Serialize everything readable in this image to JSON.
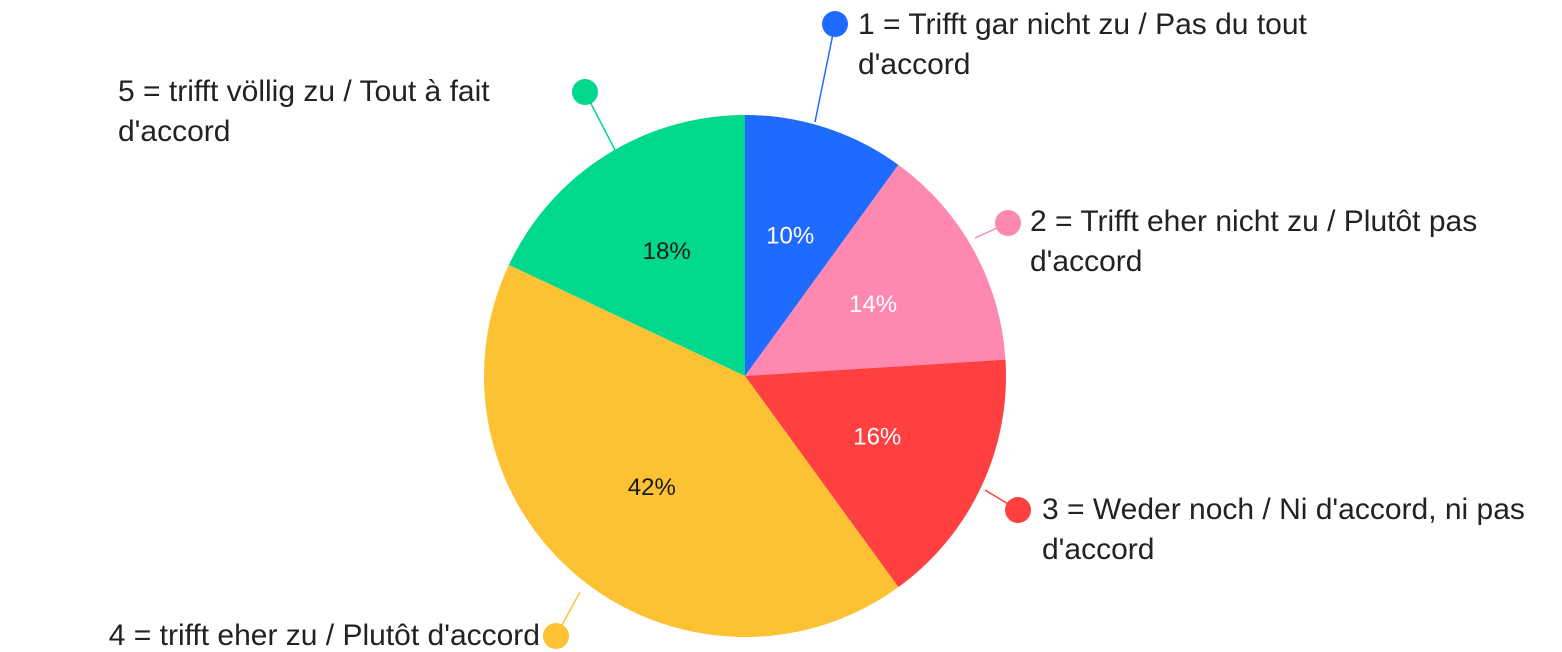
{
  "chart_data": {
    "type": "pie",
    "categories": [
      "1 = Trifft gar nicht zu / Pas du tout d'accord",
      "2 = Trifft eher nicht zu / Plutôt pas d'accord",
      "3 = Weder noch / Ni d'accord, ni pas d'accord",
      "4 = trifft eher zu / Plutôt d'accord",
      "5 = trifft völlig zu / Tout à fait d'accord"
    ],
    "values": [
      10,
      14,
      16,
      42,
      18
    ],
    "value_labels": [
      "10%",
      "14%",
      "16%",
      "42%",
      "18%"
    ],
    "colors": [
      "#1f6bff",
      "#ff88b0",
      "#ff4040",
      "#fdc134",
      "#00d98c"
    ]
  }
}
